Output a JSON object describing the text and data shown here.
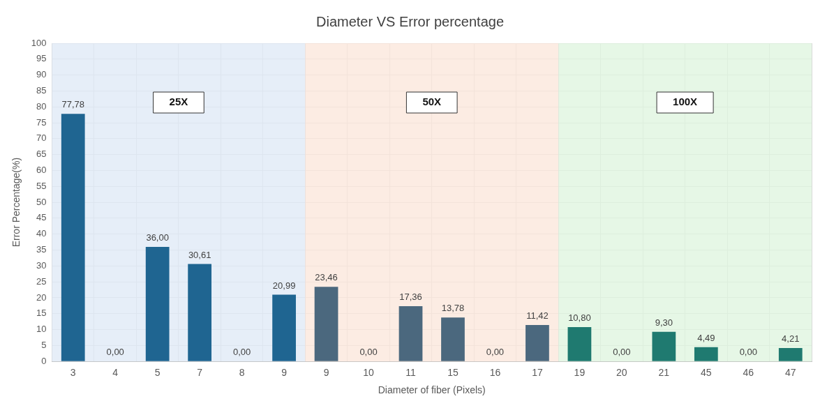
{
  "chart_data": {
    "type": "bar",
    "title": "Diameter VS Error percentage",
    "xlabel": "Diameter of fiber (Pixels)",
    "ylabel": "Error Percentage(%)",
    "categories": [
      "3",
      "4",
      "5",
      "7",
      "8",
      "9",
      "9",
      "10",
      "11",
      "15",
      "16",
      "17",
      "19",
      "20",
      "21",
      "45",
      "46",
      "47"
    ],
    "values": [
      77.78,
      0,
      36,
      30.61,
      0,
      20.99,
      23.46,
      0,
      17.36,
      13.78,
      0,
      11.42,
      10.8,
      0,
      9.3,
      4.49,
      0,
      4.21
    ],
    "value_labels": [
      "77,78",
      "0,00",
      "36,00",
      "30,61",
      "0,00",
      "20,99",
      "23,46",
      "0,00",
      "17,36",
      "13,78",
      "0,00",
      "11,42",
      "10,80",
      "0,00",
      "9,30",
      "4,49",
      "0,00",
      "4,21"
    ],
    "colors": [
      "#1f6591",
      "#1f6591",
      "#1f6591",
      "#1f6591",
      "#1f6591",
      "#1f6591",
      "#4b687e",
      "#4b687e",
      "#4b687e",
      "#4b687e",
      "#4b687e",
      "#4b687e",
      "#1f7a70",
      "#1f7a70",
      "#1f7a70",
      "#1f7a70",
      "#1f7a70",
      "#1f7a70"
    ],
    "ylim": [
      0,
      100
    ],
    "yticks": [
      0,
      5,
      10,
      15,
      20,
      25,
      30,
      35,
      40,
      45,
      50,
      55,
      60,
      65,
      70,
      75,
      80,
      85,
      90,
      95,
      100
    ],
    "bands": [
      {
        "axis": "x",
        "from": "3",
        "to": "9",
        "label": "25X",
        "color": "#dde8f6"
      },
      {
        "axis": "x",
        "from": "9",
        "to": "17",
        "label": "50X",
        "color": "#fbe6da"
      },
      {
        "axis": "x",
        "from": "19",
        "to": "47",
        "label": "100X",
        "color": "#ddf4dd"
      }
    ],
    "grid": true,
    "legend": false
  }
}
